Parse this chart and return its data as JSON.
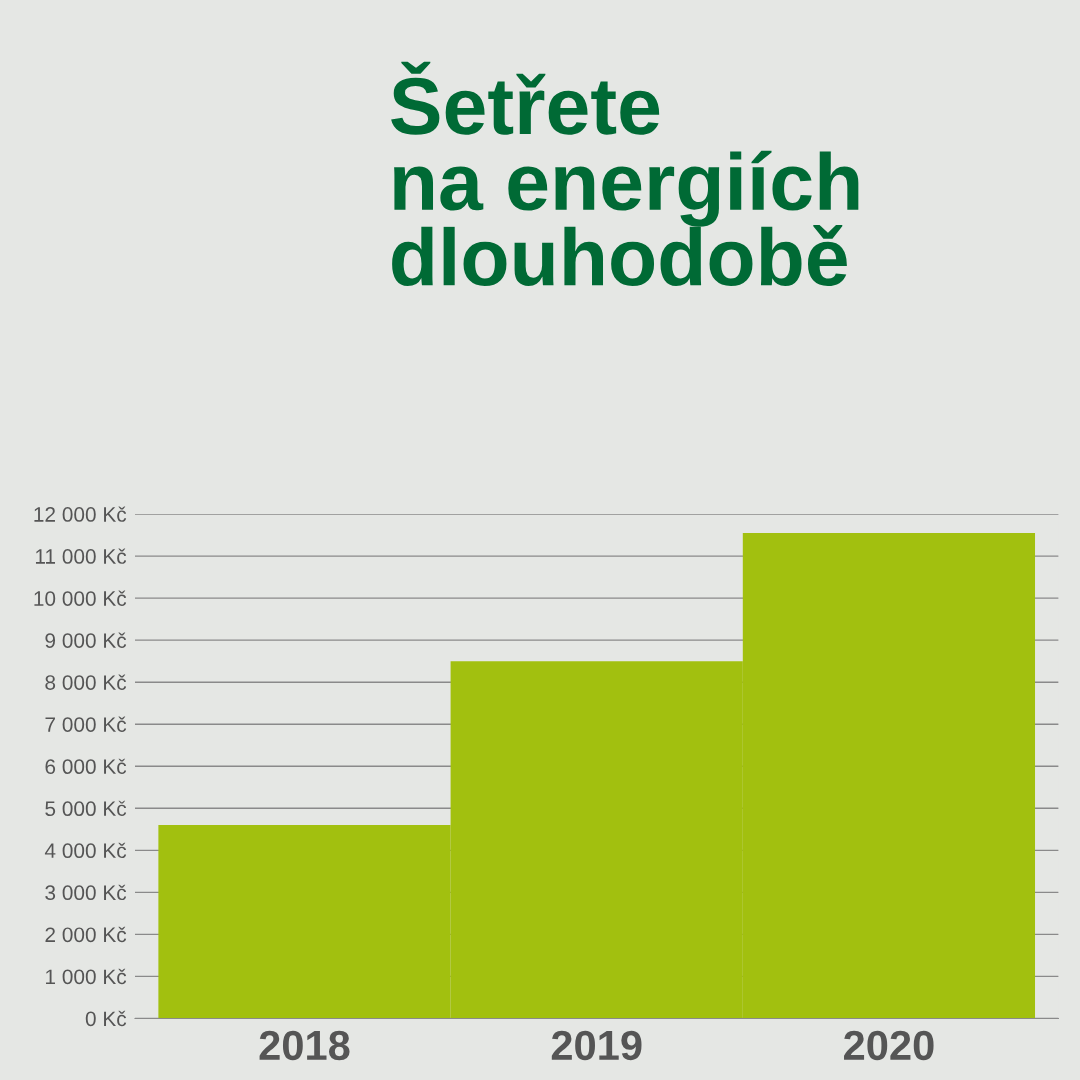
{
  "chart_data": {
    "type": "bar",
    "title": "Šetřete\nna energiích\ndlouhodobě",
    "categories": [
      "2018",
      "2019",
      "2020"
    ],
    "series": [
      {
        "color": "#a2c00f",
        "values": [
          4600,
          8500,
          11550
        ]
      }
    ],
    "ylim": [
      0,
      12000
    ],
    "yticks": [
      {
        "value": 0,
        "label": "0 Kč"
      },
      {
        "value": 1000,
        "label": "1 000 Kč"
      },
      {
        "value": 2000,
        "label": "2 000 Kč"
      },
      {
        "value": 3000,
        "label": "3 000 Kč"
      },
      {
        "value": 4000,
        "label": "4 000 Kč"
      },
      {
        "value": 5000,
        "label": "5 000 Kč"
      },
      {
        "value": 6000,
        "label": "6 000 Kč"
      },
      {
        "value": 7000,
        "label": "7 000 Kč"
      },
      {
        "value": 8000,
        "label": "8 000 Kč"
      },
      {
        "value": 9000,
        "label": "9 000 Kč"
      },
      {
        "value": 10000,
        "label": "10 000 Kč"
      },
      {
        "value": 11000,
        "label": "11 000 Kč"
      },
      {
        "value": 12000,
        "label": "12 000 Kč"
      }
    ],
    "grid": "y"
  }
}
